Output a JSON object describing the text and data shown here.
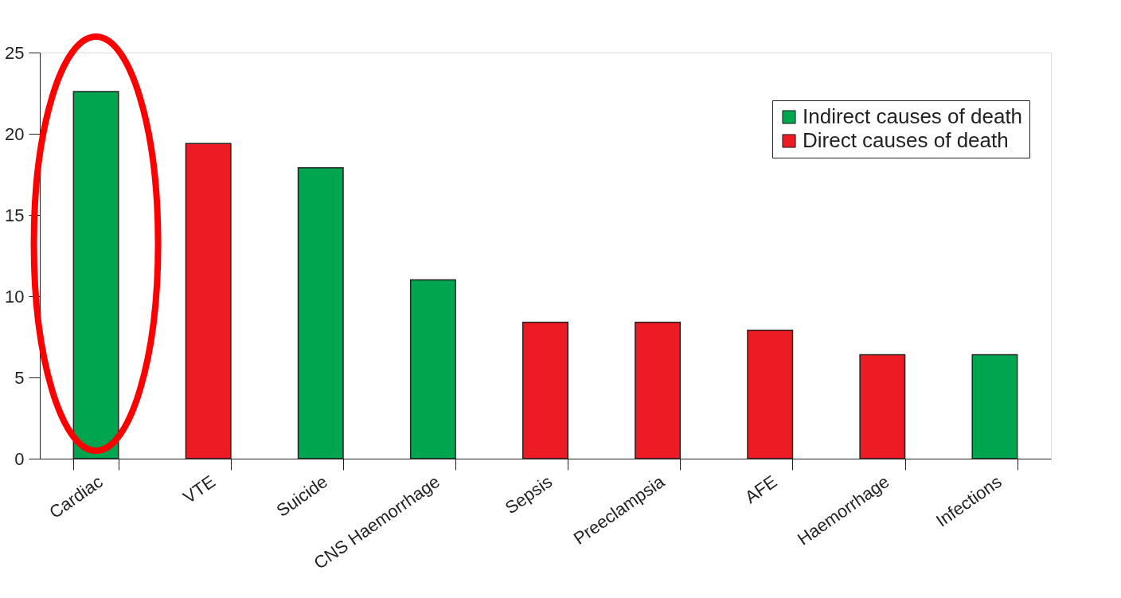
{
  "chart_data": {
    "type": "bar",
    "categories": [
      "Cardiac",
      "VTE",
      "Suicide",
      "CNS Haemorrhage",
      "Sepsis",
      "Preeclampsia",
      "AFE",
      "Haemorrhage",
      "Infections"
    ],
    "series": [
      {
        "name": "Indirect causes of death",
        "color": "#00a550",
        "values": [
          22.6,
          null,
          17.9,
          11.0,
          null,
          null,
          null,
          null,
          6.4
        ]
      },
      {
        "name": "Direct causes of death",
        "color": "#ed1c24",
        "values": [
          null,
          19.4,
          null,
          null,
          8.4,
          8.4,
          7.9,
          6.4,
          null
        ]
      }
    ],
    "ylim": [
      0,
      25
    ],
    "yticks": [
      0,
      5,
      10,
      15,
      20,
      25
    ],
    "grid": false,
    "legend": "top right"
  }
}
